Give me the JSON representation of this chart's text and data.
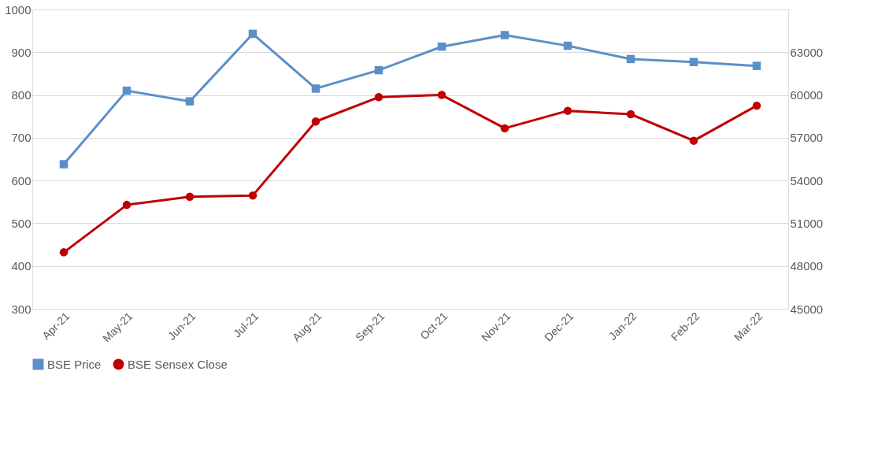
{
  "chart_data": {
    "type": "line",
    "categories": [
      "Apr-21",
      "May-21",
      "Jun-21",
      "Jul-21",
      "Aug-21",
      "Sep-21",
      "Oct-21",
      "Nov-21",
      "Dec-21",
      "Jan-22",
      "Feb-22",
      "Mar-22"
    ],
    "series": [
      {
        "name": "BSE Price",
        "color": "#5b8fc9",
        "marker": "square",
        "values": [
          638,
          810,
          785,
          943,
          815,
          858,
          913,
          940,
          915,
          884,
          877,
          868
        ]
      },
      {
        "name": "BSE Sensex Close",
        "color": "#c00000",
        "marker": "circle",
        "axis": "y2",
        "values": [
          48960,
          52290,
          52860,
          52950,
          58140,
          59850,
          60000,
          57660,
          58890,
          58650,
          56790,
          59250
        ]
      }
    ],
    "ylim": [
      300,
      1000
    ],
    "yticks": [
      300,
      400,
      500,
      600,
      700,
      800,
      900,
      1000
    ],
    "y2lim": [
      45000,
      66000
    ],
    "y2ticks": [
      45000,
      48000,
      51000,
      54000,
      57000,
      60000,
      63000
    ],
    "grid": "y",
    "legend": "bottom",
    "line_style": "solid"
  }
}
